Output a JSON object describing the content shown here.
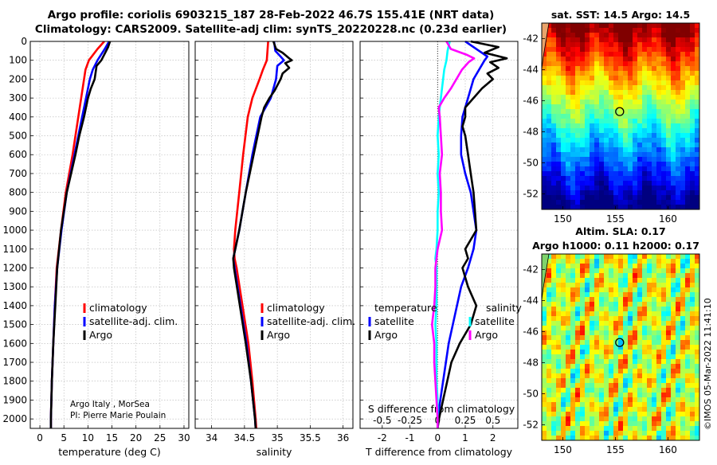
{
  "page": {
    "title_line1": "Argo profile: coriolis 6903215_187 28-Feb-2022 46.7S 155.41E (NRT data)",
    "title_line2": "Climatology: CARS2009. Satellite-adj clim: synTS_20220228.nc (0.23d earlier)",
    "credit": "Argo Italy , MorSea",
    "pi": "PI: Pierre Marie Poulain",
    "watermark": "©IMOS 05-Mar-2022 11:41:10"
  },
  "colors": {
    "climatology": "#ff0000",
    "satellite": "#0000ff",
    "argo": "#000000",
    "sat_salinity": "#00ffff",
    "argo_salinity": "#ff00ff"
  },
  "chart_data": [
    {
      "type": "line",
      "xlabel": "temperature (deg C)",
      "xlim": [
        -2,
        31
      ],
      "xticks": [
        0,
        5,
        10,
        15,
        20,
        25,
        30
      ],
      "ylim": [
        0,
        2050
      ],
      "yticks": [
        0,
        100,
        200,
        300,
        400,
        500,
        600,
        700,
        800,
        900,
        1000,
        1100,
        1200,
        1300,
        1400,
        1500,
        1600,
        1700,
        1800,
        1900,
        2000
      ],
      "grid": true,
      "legend": [
        "climatology",
        "satellite-adj. clim.",
        "Argo"
      ],
      "legend_position": "lower-right",
      "series": [
        {
          "name": "climatology",
          "color": "climatology",
          "depth": [
            0,
            40,
            100,
            150,
            200,
            300,
            400,
            600,
            800,
            1000,
            1200,
            1400,
            1600,
            1800,
            2000,
            2050
          ],
          "values": [
            13.4,
            12.0,
            10.2,
            9.5,
            9.2,
            8.6,
            8.0,
            6.8,
            5.4,
            4.4,
            3.5,
            3.1,
            2.8,
            2.5,
            2.3,
            2.3
          ]
        },
        {
          "name": "satellite-adj. clim.",
          "color": "satellite",
          "depth": [
            0,
            40,
            100,
            150,
            200,
            300,
            400,
            600,
            800,
            1000,
            1200,
            1400,
            1600,
            1800,
            2000,
            2050
          ],
          "values": [
            14.4,
            13.5,
            12.0,
            11.0,
            10.4,
            9.6,
            8.8,
            7.2,
            5.6,
            4.5,
            3.6,
            3.1,
            2.8,
            2.5,
            2.3,
            2.3
          ]
        },
        {
          "name": "Argo",
          "color": "argo",
          "depth": [
            0,
            30,
            60,
            100,
            130,
            200,
            250,
            300,
            400,
            500,
            600,
            800,
            1000,
            1200,
            1400,
            1600,
            1800,
            2000,
            2050
          ],
          "values": [
            14.6,
            14.2,
            13.6,
            12.8,
            11.8,
            11.4,
            10.6,
            10.0,
            9.2,
            8.2,
            7.4,
            5.6,
            4.4,
            3.6,
            3.2,
            2.8,
            2.5,
            2.3,
            2.3
          ]
        }
      ]
    },
    {
      "type": "line",
      "xlabel": "salinity",
      "xlim": [
        33.75,
        36.15
      ],
      "xticks": [
        34,
        34.5,
        35,
        35.5,
        36
      ],
      "ylim": [
        0,
        2050
      ],
      "grid": true,
      "legend": [
        "climatology",
        "satellite-adj. clim.",
        "Argo"
      ],
      "legend_position": "lower-right",
      "series": [
        {
          "name": "climatology",
          "color": "climatology",
          "depth": [
            0,
            100,
            150,
            200,
            300,
            400,
            600,
            800,
            1000,
            1100,
            1150,
            1200,
            1400,
            1600,
            1800,
            2000,
            2050
          ],
          "values": [
            34.86,
            34.84,
            34.78,
            34.73,
            34.62,
            34.55,
            34.48,
            34.42,
            34.36,
            34.34,
            34.35,
            34.38,
            34.47,
            34.56,
            34.62,
            34.67,
            34.68
          ]
        },
        {
          "name": "satellite-adj. clim.",
          "color": "satellite",
          "depth": [
            0,
            50,
            80,
            100,
            130,
            200,
            300,
            350,
            400,
            600,
            800,
            1000,
            1100,
            1150,
            1200,
            1400,
            1600,
            1800,
            2000,
            2050
          ],
          "values": [
            34.95,
            34.97,
            35.05,
            35.1,
            35.0,
            34.98,
            34.9,
            34.82,
            34.74,
            34.62,
            34.52,
            34.42,
            34.36,
            34.33,
            34.35,
            34.44,
            34.53,
            34.6,
            34.66,
            34.67
          ]
        },
        {
          "name": "Argo",
          "color": "argo",
          "depth": [
            0,
            40,
            60,
            90,
            100,
            115,
            140,
            170,
            200,
            260,
            300,
            350,
            400,
            600,
            800,
            1000,
            1100,
            1150,
            1200,
            1400,
            1600,
            1800,
            2000,
            2050
          ],
          "values": [
            34.94,
            34.98,
            35.08,
            35.18,
            35.22,
            35.12,
            35.18,
            35.08,
            35.05,
            34.96,
            34.88,
            34.8,
            34.76,
            34.64,
            34.52,
            34.42,
            34.36,
            34.33,
            34.34,
            34.43,
            34.52,
            34.6,
            34.66,
            34.67
          ]
        }
      ]
    },
    {
      "type": "line",
      "xlabel": "T difference from climatology",
      "xlim": [
        -2.8,
        2.9
      ],
      "xticks": [
        -2,
        -1,
        0,
        1,
        2
      ],
      "top_axis_label": "S difference from climatology",
      "top_ticks": [
        {
          "label": "-0.5",
          "s": -0.5
        },
        {
          "label": "-0.25",
          "s": -0.25
        },
        {
          "label": "0",
          "s": 0
        },
        {
          "label": "0.25",
          "s": 0.25
        },
        {
          "label": "0.5",
          "s": 0.5
        }
      ],
      "s_scale_per_T": 0.25,
      "ylim": [
        0,
        2050
      ],
      "grid": true,
      "legend_temperature_title": "temperature",
      "legend_salinity_title": "salinity",
      "legend_temperature": [
        "satellite",
        "Argo"
      ],
      "legend_salinity": [
        "satellite",
        "Argo"
      ],
      "series": [
        {
          "name": "satellite",
          "group": "temperature",
          "color": "satellite",
          "depth": [
            0,
            50,
            80,
            100,
            200,
            300,
            400,
            500,
            600,
            700,
            800,
            900,
            1000,
            1100,
            1200,
            1300,
            1400,
            1500,
            1600,
            1700,
            1800,
            1900,
            2000,
            2050
          ],
          "values": [
            1.0,
            1.5,
            1.8,
            1.7,
            1.3,
            1.1,
            0.9,
            0.85,
            0.85,
            1.0,
            1.2,
            1.3,
            1.4,
            1.3,
            1.1,
            0.85,
            0.7,
            0.55,
            0.4,
            0.3,
            0.2,
            0.1,
            0.0,
            0.0
          ]
        },
        {
          "name": "Argo",
          "group": "temperature",
          "color": "argo",
          "depth": [
            0,
            30,
            60,
            90,
            110,
            140,
            170,
            200,
            250,
            300,
            350,
            400,
            450,
            500,
            600,
            700,
            800,
            900,
            1000,
            1100,
            1150,
            1200,
            1300,
            1400,
            1500,
            1600,
            1700,
            1800,
            1900,
            2000,
            2050
          ],
          "values": [
            1.2,
            2.2,
            1.7,
            2.5,
            1.9,
            2.2,
            1.8,
            2.0,
            1.6,
            1.3,
            1.0,
            1.0,
            0.9,
            1.0,
            1.1,
            1.2,
            1.3,
            1.35,
            1.4,
            1.0,
            1.1,
            0.9,
            1.1,
            1.4,
            1.2,
            0.8,
            0.5,
            0.35,
            0.2,
            0.05,
            0.0
          ]
        },
        {
          "name": "satellite",
          "group": "salinity",
          "color": "sat_salinity",
          "depth": [
            0,
            50,
            100,
            150,
            200,
            250,
            300,
            350,
            400,
            500,
            600,
            700,
            800,
            900,
            1000,
            1100,
            1150,
            1200,
            1300,
            1400,
            1500,
            1600,
            1700,
            1800,
            1900,
            2000,
            2050
          ],
          "values": [
            0.11,
            0.09,
            0.08,
            0.06,
            0.05,
            0.04,
            0.03,
            0.02,
            0.01,
            0.0,
            0.01,
            0.0,
            0.01,
            0.0,
            0.0,
            -0.01,
            -0.02,
            -0.01,
            -0.01,
            -0.01,
            -0.02,
            -0.01,
            -0.01,
            -0.01,
            0.0,
            0.0,
            0.0
          ]
        },
        {
          "name": "Argo",
          "group": "salinity",
          "color": "argo_salinity",
          "depth": [
            0,
            40,
            70,
            90,
            110,
            150,
            200,
            250,
            300,
            350,
            400,
            500,
            600,
            700,
            800,
            900,
            1000,
            1100,
            1200,
            1300,
            1400,
            1500,
            1600,
            1700,
            1800,
            1900,
            2000,
            2050
          ],
          "values": [
            0.08,
            0.12,
            0.26,
            0.33,
            0.28,
            0.22,
            0.17,
            0.12,
            0.06,
            0.01,
            0.02,
            0.03,
            0.04,
            0.02,
            0.03,
            0.03,
            0.04,
            0.0,
            -0.02,
            -0.02,
            -0.03,
            -0.05,
            -0.03,
            -0.03,
            -0.02,
            -0.01,
            0.0,
            0.0
          ]
        }
      ]
    },
    {
      "type": "heatmap",
      "title": "sat. SST: 14.5 Argo: 14.5",
      "xlim": [
        148,
        163
      ],
      "ylim": [
        -53,
        -41
      ],
      "xticks": [
        150,
        155,
        160
      ],
      "yticks": [
        -42,
        -44,
        -46,
        -48,
        -50,
        -52
      ],
      "marker": {
        "lon": 155.41,
        "lat": -46.7
      },
      "colormap": "jet",
      "value_range": [
        5,
        20
      ]
    },
    {
      "type": "heatmap",
      "title_line1": "Altim. SLA: 0.17",
      "title_line2": "Argo h1000: 0.11 h2000: 0.17",
      "xlim": [
        148,
        163
      ],
      "ylim": [
        -53,
        -41
      ],
      "xticks": [
        150,
        155,
        160
      ],
      "yticks": [
        -42,
        -44,
        -46,
        -48,
        -50,
        -52
      ],
      "marker": {
        "lon": 155.41,
        "lat": -46.7
      },
      "colormap": "jet",
      "value_range": [
        -0.6,
        0.6
      ]
    }
  ]
}
